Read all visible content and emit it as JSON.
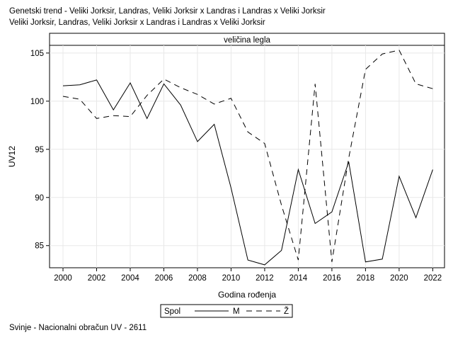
{
  "title_lines": [
    "Genetski trend - Veliki Jorksir, Landras, Veliki Jorksir x Landras i Landras x Veliki Jorksir",
    "Veliki Jorksir, Landras, Veliki Jorksir x Landras i Landras x Veliki Jorksir"
  ],
  "footer": "Svinje - Nacionalni obračun UV - 2611",
  "chart_data": {
    "type": "line",
    "panel_label": "veličina legla",
    "xlabel": "Godina rođenja",
    "ylabel": "UV12",
    "x": [
      2000,
      2001,
      2002,
      2003,
      2004,
      2005,
      2006,
      2007,
      2008,
      2009,
      2010,
      2011,
      2012,
      2013,
      2014,
      2015,
      2016,
      2017,
      2018,
      2019,
      2020,
      2021,
      2022
    ],
    "xlim": [
      1999.2,
      2022.7
    ],
    "ylim": [
      82.7,
      105.8
    ],
    "xticks": [
      2000,
      2002,
      2004,
      2006,
      2008,
      2010,
      2012,
      2014,
      2016,
      2018,
      2020,
      2022
    ],
    "yticks": [
      85,
      90,
      95,
      100,
      105
    ],
    "grid": true,
    "legend_title": "Spol",
    "legend_position": "bottom",
    "series": [
      {
        "name": "M",
        "dash": "solid",
        "values": [
          101.6,
          101.7,
          102.2,
          99.1,
          101.9,
          98.2,
          101.8,
          99.6,
          95.8,
          97.6,
          91.0,
          83.5,
          83.0,
          84.5,
          92.9,
          87.3,
          88.5,
          93.7,
          83.3,
          83.6,
          92.2,
          87.9,
          92.9
        ]
      },
      {
        "name": "Ž",
        "dash": "dashed",
        "values": [
          100.5,
          100.2,
          98.2,
          98.5,
          98.4,
          100.6,
          102.3,
          101.4,
          100.7,
          99.7,
          100.3,
          96.8,
          95.6,
          89.2,
          83.5,
          101.8,
          83.3,
          94.1,
          103.3,
          104.9,
          105.3,
          101.8,
          101.3
        ]
      }
    ]
  }
}
